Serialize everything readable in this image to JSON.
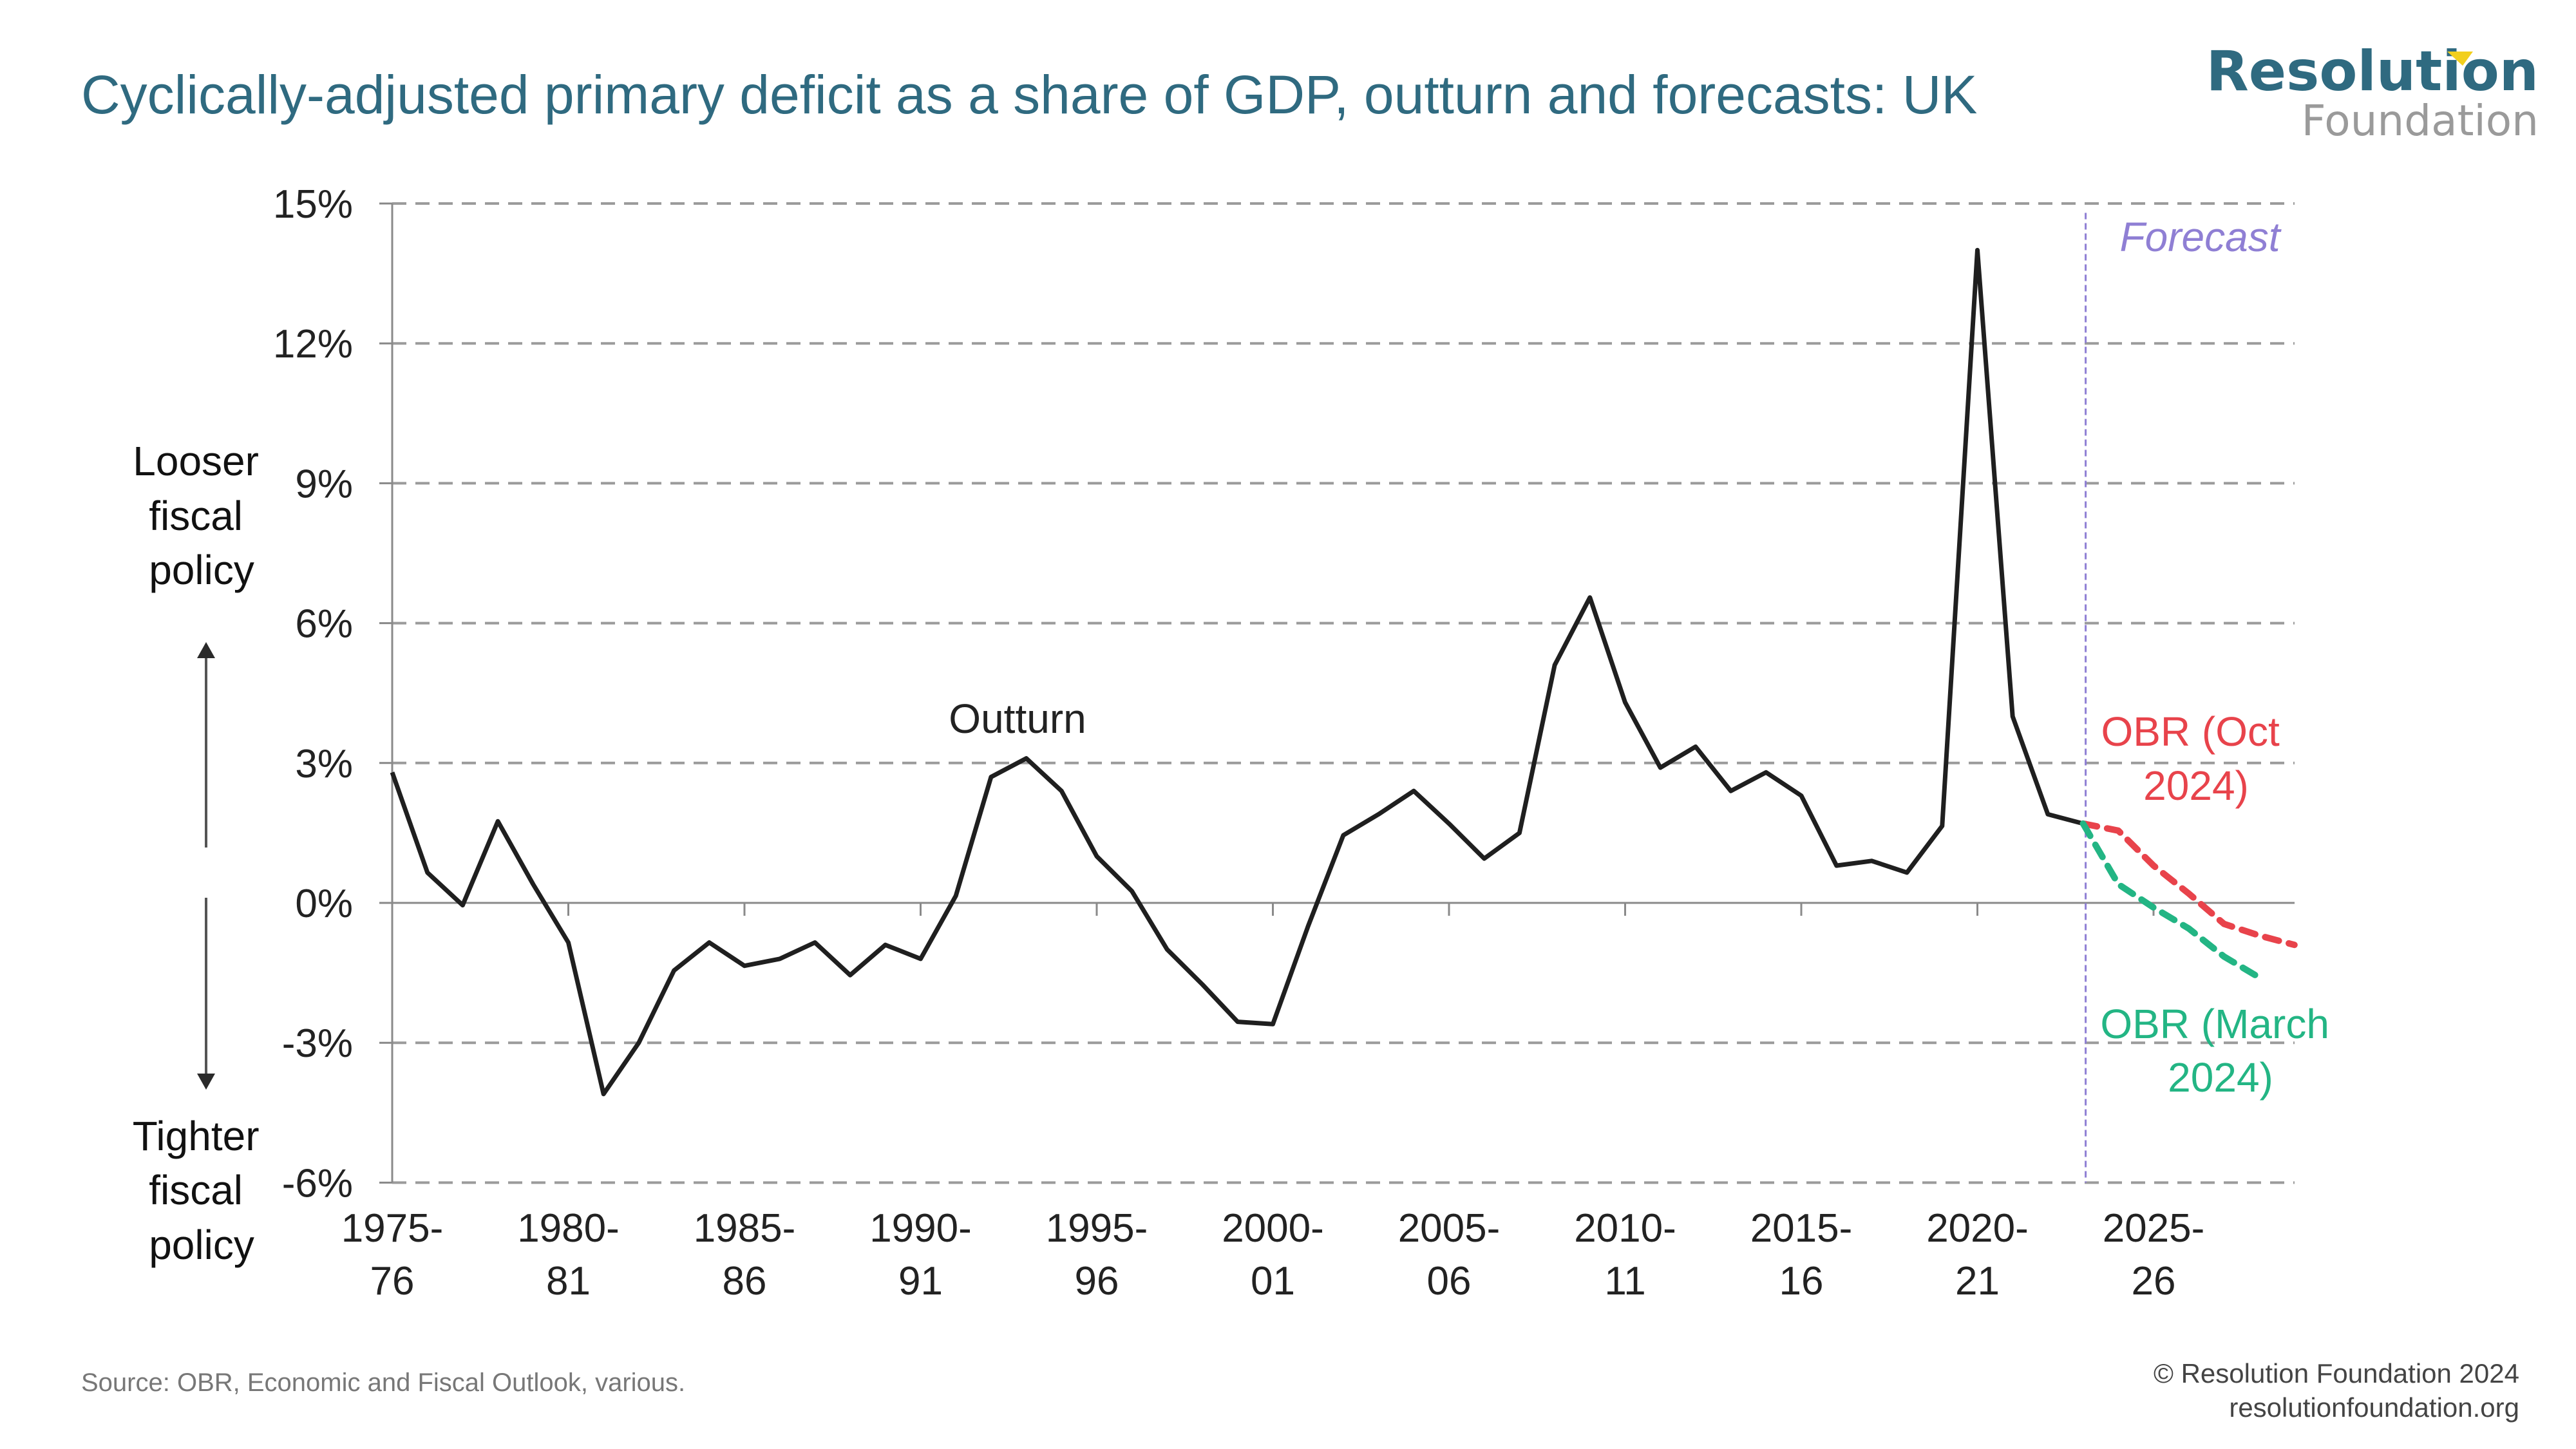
{
  "header": {
    "title": "Cyclically-adjusted primary deficit as a share of GDP, outturn and forecasts: UK",
    "logo_line1": "Resolution",
    "logo_line2": "Foundation"
  },
  "colors": {
    "title": "#2f6a80",
    "logo_accent": "#f2cf1d",
    "outturn": "#1f1f1f",
    "obr_oct_2024": "#e8434b",
    "obr_march_2024": "#23b584",
    "forecast_marker": "#8f7fd4",
    "grid": "#9b9b9b"
  },
  "side_labels": {
    "top": [
      "Looser",
      "fiscal",
      "policy"
    ],
    "bottom": [
      "Tighter",
      "fiscal",
      "policy"
    ]
  },
  "footer": {
    "source": "Source: OBR, Economic and Fiscal Outlook, various.",
    "copyright": "© Resolution Foundation 2024",
    "website": "resolutionfoundation.org"
  },
  "chart_data": {
    "type": "line",
    "title": "Cyclically-adjusted primary deficit as a share of GDP, outturn and forecasts: UK",
    "xlabel": "",
    "ylabel": "",
    "ylim": [
      -6,
      15
    ],
    "yticks": [
      15,
      12,
      9,
      6,
      3,
      0,
      -3,
      -6
    ],
    "ytick_labels": [
      "15%",
      "12%",
      "9%",
      "6%",
      "3%",
      "0%",
      "-3%",
      "-6%"
    ],
    "grid": true,
    "x": [
      "1975-76",
      "1976-77",
      "1977-78",
      "1978-79",
      "1979-80",
      "1980-81",
      "1981-82",
      "1982-83",
      "1983-84",
      "1984-85",
      "1985-86",
      "1986-87",
      "1987-88",
      "1988-89",
      "1989-90",
      "1990-91",
      "1991-92",
      "1992-93",
      "1993-94",
      "1994-95",
      "1995-96",
      "1996-97",
      "1997-98",
      "1998-99",
      "1999-00",
      "2000-01",
      "2001-02",
      "2002-03",
      "2003-04",
      "2004-05",
      "2005-06",
      "2006-07",
      "2007-08",
      "2008-09",
      "2009-10",
      "2010-11",
      "2011-12",
      "2012-13",
      "2013-14",
      "2014-15",
      "2015-16",
      "2016-17",
      "2017-18",
      "2018-19",
      "2019-20",
      "2020-21",
      "2021-22",
      "2022-23",
      "2023-24",
      "2024-25",
      "2025-26",
      "2026-27",
      "2027-28",
      "2028-29",
      "2029-30"
    ],
    "xtick_labels": [
      {
        "x": "1975-76",
        "lines": [
          "1975-",
          "76"
        ]
      },
      {
        "x": "1980-81",
        "lines": [
          "1980-",
          "81"
        ]
      },
      {
        "x": "1985-86",
        "lines": [
          "1985-",
          "86"
        ]
      },
      {
        "x": "1990-91",
        "lines": [
          "1990-",
          "91"
        ]
      },
      {
        "x": "1995-96",
        "lines": [
          "1995-",
          "96"
        ]
      },
      {
        "x": "2000-01",
        "lines": [
          "2000-",
          "01"
        ]
      },
      {
        "x": "2005-06",
        "lines": [
          "2005-",
          "06"
        ]
      },
      {
        "x": "2010-11",
        "lines": [
          "2010-",
          "11"
        ]
      },
      {
        "x": "2015-16",
        "lines": [
          "2015-",
          "16"
        ]
      },
      {
        "x": "2020-21",
        "lines": [
          "2020-",
          "21"
        ]
      },
      {
        "x": "2025-26",
        "lines": [
          "2025-",
          "26"
        ]
      }
    ],
    "forecast_start": "2023-24",
    "forecast_label": "Forecast",
    "series": [
      {
        "name": "Outturn",
        "label_lines": [
          "Outturn"
        ],
        "style": "solid",
        "start": "1975-76",
        "values": [
          2.8,
          0.65,
          -0.05,
          1.75,
          0.4,
          -0.85,
          -4.1,
          -3.0,
          -1.45,
          -0.85,
          -1.35,
          -1.2,
          -0.85,
          -1.55,
          -0.9,
          -1.2,
          0.15,
          2.7,
          3.1,
          2.4,
          1.0,
          0.25,
          -1.0,
          -1.75,
          -2.55,
          -2.6,
          -0.5,
          1.45,
          1.9,
          2.4,
          1.7,
          0.95,
          1.5,
          5.1,
          6.55,
          4.3,
          2.9,
          3.35,
          2.4,
          2.8,
          2.3,
          0.8,
          0.9,
          0.65,
          1.65,
          14.0,
          4.0,
          1.9,
          1.7
        ]
      },
      {
        "name": "OBR (Oct 2024)",
        "label_lines": [
          "OBR (Oct",
          "2024)"
        ],
        "style": "dashed",
        "start": "2023-24",
        "values": [
          1.7,
          1.55,
          0.8,
          0.2,
          -0.45,
          -0.7,
          -0.9
        ]
      },
      {
        "name": "OBR (March 2024)",
        "label_lines": [
          "OBR (March",
          "2024)"
        ],
        "style": "dashed",
        "start": "2023-24",
        "values": [
          1.7,
          0.4,
          -0.1,
          -0.55,
          -1.15,
          -1.6
        ]
      }
    ]
  }
}
